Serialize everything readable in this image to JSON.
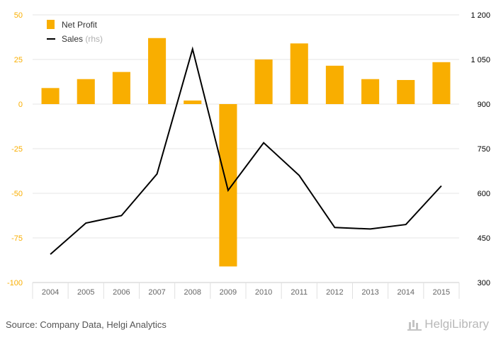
{
  "chart_data": {
    "type": "bar",
    "categories": [
      "2004",
      "2005",
      "2006",
      "2007",
      "2008",
      "2009",
      "2010",
      "2011",
      "2012",
      "2013",
      "2014",
      "2015"
    ],
    "series": [
      {
        "name": "Net Profit",
        "type": "bar",
        "axis": "left",
        "color": "#f9ae00",
        "values": [
          9,
          14,
          18,
          37,
          2,
          -91,
          25,
          34,
          21.5,
          14,
          13.5,
          23.5
        ]
      },
      {
        "name": "Sales",
        "name_suffix": "(rhs)",
        "type": "line",
        "axis": "right",
        "color": "#000000",
        "values": [
          395,
          500,
          525,
          665,
          1085,
          610,
          770,
          660,
          485,
          480,
          495,
          625
        ]
      }
    ],
    "y_left": {
      "ylim": [
        -100,
        50
      ],
      "ticks": [
        "50",
        "25",
        "0",
        "-25",
        "-50",
        "-75",
        "-100"
      ],
      "tick_values": [
        50,
        25,
        0,
        -25,
        -50,
        -75,
        -100
      ],
      "tick_color": "#f9ae00"
    },
    "y_right": {
      "ylim": [
        300,
        1200
      ],
      "ticks": [
        "1 200",
        "1 050",
        "900",
        "750",
        "600",
        "450",
        "300"
      ],
      "tick_values": [
        1200,
        1050,
        900,
        750,
        600,
        450,
        300
      ],
      "tick_color": "#000000"
    },
    "grid": true,
    "legend_position": "top-left"
  },
  "footer": {
    "source": "Source: Company Data, Helgi Analytics",
    "logo_text": "HelgiLibrary"
  }
}
